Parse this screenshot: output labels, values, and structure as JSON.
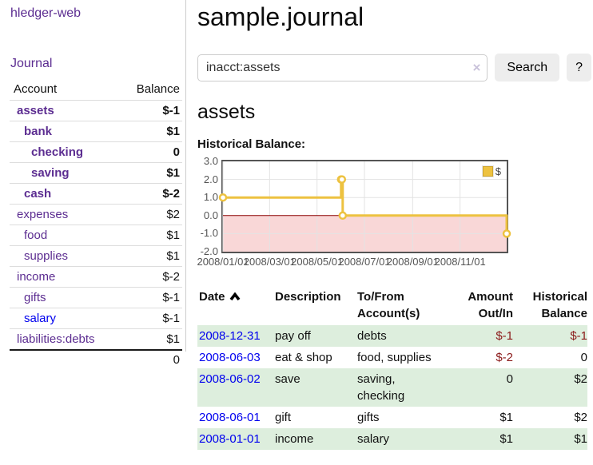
{
  "sidebar": {
    "brand": "hledger-web",
    "nav_journal": "Journal",
    "accounts_table": {
      "header_account": "Account",
      "header_balance": "Balance",
      "rows": [
        {
          "name": "assets",
          "depth": 1,
          "bold": true,
          "balance": "$-1",
          "balance_class": "neg",
          "link_blue": false
        },
        {
          "name": "bank",
          "depth": 2,
          "bold": true,
          "balance": "$1",
          "balance_class": "",
          "link_blue": false
        },
        {
          "name": "checking",
          "depth": 3,
          "bold": true,
          "balance": "0",
          "balance_class": "",
          "link_blue": false
        },
        {
          "name": "saving",
          "depth": 3,
          "bold": true,
          "balance": "$1",
          "balance_class": "",
          "link_blue": false
        },
        {
          "name": "cash",
          "depth": 2,
          "bold": true,
          "balance": "$-2",
          "balance_class": "neg",
          "link_blue": false
        },
        {
          "name": "expenses",
          "depth": 1,
          "bold": false,
          "balance": "$2",
          "balance_class": "",
          "link_blue": false
        },
        {
          "name": "food",
          "depth": 2,
          "bold": false,
          "balance": "$1",
          "balance_class": "",
          "link_blue": false
        },
        {
          "name": "supplies",
          "depth": 2,
          "bold": false,
          "balance": "$1",
          "balance_class": "",
          "link_blue": false
        },
        {
          "name": "income",
          "depth": 1,
          "bold": false,
          "balance": "$-2",
          "balance_class": "negm",
          "link_blue": false
        },
        {
          "name": "gifts",
          "depth": 2,
          "bold": false,
          "balance": "$-1",
          "balance_class": "negm",
          "link_blue": false
        },
        {
          "name": "salary",
          "depth": 2,
          "bold": false,
          "balance": "$-1",
          "balance_class": "negm",
          "link_blue": true
        },
        {
          "name": "liabilities:debts",
          "depth": 1,
          "bold": false,
          "balance": "$1",
          "balance_class": "",
          "link_blue": false
        }
      ],
      "total": "0"
    }
  },
  "main": {
    "title": "sample.journal",
    "search": {
      "value": "inacct:assets",
      "clear_icon": "×",
      "search_button": "Search",
      "help_button": "?"
    },
    "account_heading": "assets",
    "chart_title": "Historical Balance:"
  },
  "register": {
    "headers": [
      {
        "label": "Date",
        "sorted": "ascending"
      },
      {
        "label": "Description"
      },
      {
        "label": "To/From Account(s)"
      },
      {
        "label": "Amount Out/In"
      },
      {
        "label": "Historical Balance"
      }
    ],
    "rows": [
      {
        "date": "2008-12-31",
        "description": "pay off",
        "accounts": "debts",
        "amount": "$-1",
        "amount_negative": true,
        "balance": "$-1",
        "balance_negative": true
      },
      {
        "date": "2008-06-03",
        "description": "eat & shop",
        "accounts": "food, supplies",
        "amount": "$-2",
        "amount_negative": true,
        "balance": "0",
        "balance_negative": false
      },
      {
        "date": "2008-06-02",
        "description": "save",
        "accounts": "saving, checking",
        "amount": "0",
        "amount_negative": false,
        "balance": "$2",
        "balance_negative": false
      },
      {
        "date": "2008-06-01",
        "description": "gift",
        "accounts": "gifts",
        "amount": "$1",
        "amount_negative": false,
        "balance": "$2",
        "balance_negative": false
      },
      {
        "date": "2008-01-01",
        "description": "income",
        "accounts": "salary",
        "amount": "$1",
        "amount_negative": false,
        "balance": "$1",
        "balance_negative": false
      }
    ]
  },
  "chart_data": {
    "type": "line",
    "title": "Historical Balance:",
    "step": true,
    "series": [
      {
        "name": "$",
        "color": "#edc240",
        "points": [
          [
            "2008/01/01",
            1
          ],
          [
            "2008/06/01",
            2
          ],
          [
            "2008/06/02",
            2
          ],
          [
            "2008/06/03",
            0
          ],
          [
            "2008/12/31",
            -1
          ]
        ]
      }
    ],
    "xrange": [
      "2008/01/01",
      "2008/12/31"
    ],
    "xticks": [
      "2008/01/01",
      "2008/03/01",
      "2008/05/01",
      "2008/07/01",
      "2008/09/01",
      "2008/11/01"
    ],
    "ylim": [
      -2,
      3
    ],
    "yticks": [
      3,
      2,
      1,
      0,
      -1,
      -2
    ],
    "legend_position": "top-right",
    "grid": true,
    "negative_fill": "#f9d7d7",
    "zero_line_color": "#8b0000",
    "gridline_color": "#e3e3e3"
  },
  "colors": {
    "link_purple": "#5c2d91",
    "link_blue": "#0000ee",
    "negative": "#8b1a1a",
    "muted_negative": "#b37c7f",
    "row_green": "#ddeedd",
    "chart_gold": "#edc240",
    "button_gray": "#ededed"
  }
}
